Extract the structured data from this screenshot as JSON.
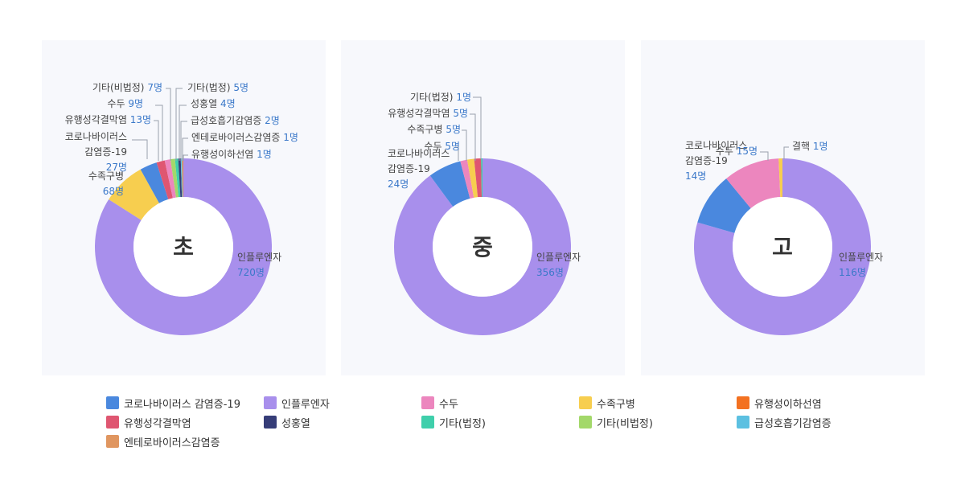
{
  "colors": {
    "코로나바이러스 감염증-19": "#4a88de",
    "인플루엔자": "#a88fec",
    "수두": "#ec86be",
    "수족구병": "#f7ce4f",
    "유행성이하선염": "#f37121",
    "유행성각결막염": "#df5671",
    "성홍열": "#363d78",
    "기타(법정)": "#3fcfab",
    "기타(비법정)": "#a3d86a",
    "급성호흡기감염증": "#5cc0e1",
    "엔테로바이러스감염증": "#e09660",
    "결핵": "#f7ce4f"
  },
  "legend": [
    "코로나바이러스 감염증-19",
    "인플루엔자",
    "수두",
    "수족구병",
    "유행성이하선염",
    "유행성각결막염",
    "성홍열",
    "기타(법정)",
    "기타(비법정)",
    "급성호흡기감염증",
    "엔테로바이러스감염증"
  ],
  "chart_data": [
    {
      "type": "pie",
      "center_label": "초",
      "unit": "명",
      "slices": [
        {
          "name": "인플루엔자",
          "value": 720
        },
        {
          "name": "수족구병",
          "value": 68
        },
        {
          "name": "코로나바이러스 감염증-19",
          "label": "코로나바이러스\n감염증-19",
          "value": 27
        },
        {
          "name": "유행성각결막염",
          "value": 13
        },
        {
          "name": "수두",
          "value": 9
        },
        {
          "name": "기타(비법정)",
          "value": 7
        },
        {
          "name": "기타(법정)",
          "value": 5
        },
        {
          "name": "성홍열",
          "value": 4
        },
        {
          "name": "급성호흡기감염증",
          "value": 2
        },
        {
          "name": "엔테로바이러스감염증",
          "value": 1
        },
        {
          "name": "유행성이하선염",
          "value": 1
        }
      ]
    },
    {
      "type": "pie",
      "center_label": "중",
      "unit": "명",
      "slices": [
        {
          "name": "인플루엔자",
          "value": 356
        },
        {
          "name": "코로나바이러스 감염증-19",
          "label": "코로나바이러스\n감염증-19",
          "value": 24
        },
        {
          "name": "수두",
          "value": 5
        },
        {
          "name": "수족구병",
          "value": 5
        },
        {
          "name": "유행성각결막염",
          "value": 5
        },
        {
          "name": "기타(법정)",
          "value": 1
        }
      ]
    },
    {
      "type": "pie",
      "center_label": "고",
      "unit": "명",
      "slices": [
        {
          "name": "인플루엔자",
          "value": 116
        },
        {
          "name": "코로나바이러스 감염증-19",
          "label": "코로나바이러스\n감염증-19",
          "value": 14
        },
        {
          "name": "수두",
          "value": 15
        },
        {
          "name": "결핵",
          "value": 1
        }
      ]
    }
  ]
}
